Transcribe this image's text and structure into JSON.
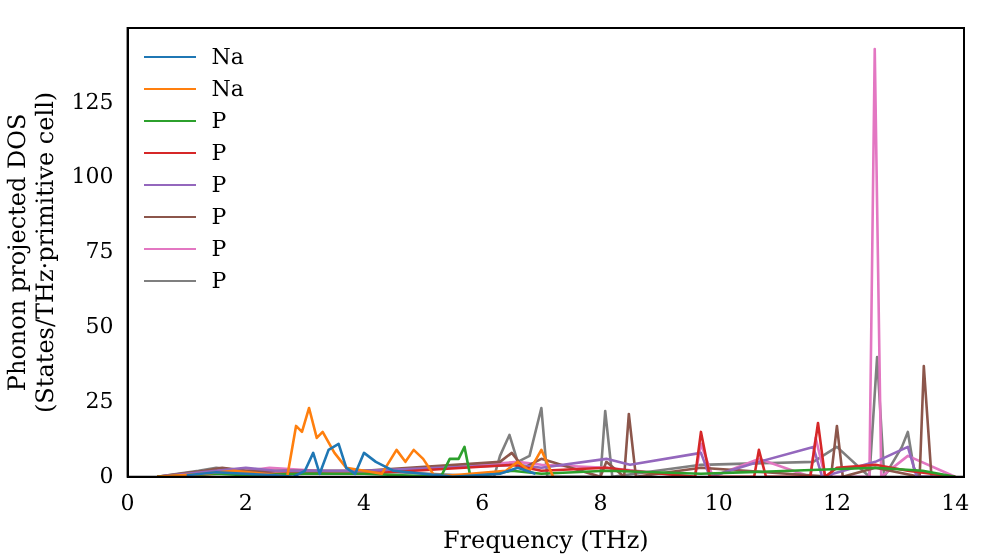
{
  "chart_data": {
    "type": "line",
    "xlabel": "Frequency (THz)",
    "ylabel": "Phonon projected DOS\n(States/THz·primitive cell)",
    "xlim": [
      0,
      14.15
    ],
    "ylim": [
      0,
      150
    ],
    "xticks": [
      0,
      2,
      4,
      6,
      8,
      10,
      12,
      14
    ],
    "yticks": [
      0,
      25,
      50,
      75,
      100,
      125
    ],
    "grid": false,
    "legend": "top left",
    "marker": "none",
    "line_style": "solid",
    "series": [
      {
        "name": "Na",
        "color": "#1f77b4",
        "x": [
          1.0,
          1.5,
          2.0,
          2.5,
          2.8,
          3.0,
          3.14,
          3.25,
          3.4,
          3.57,
          3.7,
          3.85,
          4.0,
          4.2,
          4.5,
          5.0,
          5.5,
          6.3,
          6.6,
          6.9
        ],
        "values": [
          0.5,
          1.5,
          1,
          0.5,
          0,
          2,
          8,
          1,
          9,
          11,
          3,
          1,
          8,
          5,
          2,
          1,
          0,
          1,
          3,
          1
        ]
      },
      {
        "name": "Na",
        "color": "#ff7f0e",
        "x": [
          0.5,
          1.3,
          1.8,
          2.3,
          2.7,
          2.85,
          2.95,
          3.07,
          3.2,
          3.3,
          3.5,
          3.7,
          4.0,
          4.3,
          4.55,
          4.7,
          4.84,
          5.0,
          5.2,
          6.4,
          6.6,
          6.8,
          7.0,
          7.2
        ],
        "values": [
          0,
          1,
          2,
          1,
          0,
          17,
          15,
          23,
          13,
          15,
          8,
          3,
          2,
          1,
          9,
          5,
          9,
          6,
          0,
          2,
          5,
          2,
          9,
          0
        ]
      },
      {
        "name": "P",
        "color": "#2ca02c",
        "x": [
          0.5,
          1.5,
          2.0,
          3.0,
          4.0,
          5.3,
          5.45,
          5.6,
          5.7,
          5.8,
          6.5,
          7.0,
          8.1,
          9.7,
          12.65,
          13.45,
          14.0
        ],
        "values": [
          0,
          1,
          0.5,
          1,
          1,
          0,
          6,
          6,
          10,
          0,
          2,
          1,
          2,
          1,
          3,
          2,
          0
        ]
      },
      {
        "name": "P",
        "color": "#d62728",
        "x": [
          0.5,
          1.5,
          2.5,
          4.0,
          6.5,
          7.0,
          8.1,
          8.5,
          9.6,
          9.7,
          9.85,
          10.6,
          10.68,
          10.8,
          11.55,
          11.68,
          11.8,
          12.0,
          12.65,
          13.2,
          14.0
        ],
        "values": [
          0,
          1,
          1,
          1,
          4,
          2,
          3,
          2,
          0,
          15,
          0,
          0,
          9,
          0,
          0,
          18,
          0,
          3,
          4,
          2,
          0
        ]
      },
      {
        "name": "P",
        "color": "#9467bd",
        "x": [
          0.5,
          1.5,
          2.0,
          2.5,
          4.0,
          6.6,
          7.0,
          8.1,
          8.5,
          9.7,
          9.85,
          10.68,
          11.6,
          11.75,
          12.65,
          13.2,
          13.35,
          14.0
        ],
        "values": [
          0,
          2,
          3,
          2,
          2,
          4,
          3,
          6,
          4,
          8,
          0,
          5,
          10,
          0,
          5,
          10,
          0,
          0
        ]
      },
      {
        "name": "P",
        "color": "#8c564b",
        "x": [
          0.5,
          1.3,
          1.6,
          2.0,
          4.0,
          6.3,
          6.5,
          6.7,
          7.0,
          8.0,
          8.1,
          8.4,
          8.48,
          8.6,
          9.7,
          11.9,
          12.0,
          12.1,
          12.65,
          13.4,
          13.47,
          13.6,
          14.0
        ],
        "values": [
          0,
          2,
          3,
          2,
          2,
          5,
          8,
          3,
          6,
          0,
          5,
          0,
          21,
          0,
          3,
          0,
          17,
          0,
          3,
          0,
          37,
          0,
          0
        ]
      },
      {
        "name": "P",
        "color": "#e377c2",
        "x": [
          0.5,
          1.5,
          2.0,
          2.4,
          4.0,
          6.6,
          7.0,
          8.1,
          9.6,
          9.7,
          9.9,
          10.68,
          11.55,
          11.64,
          11.8,
          12.55,
          12.64,
          12.75,
          13.2,
          14.0
        ],
        "values": [
          0,
          2,
          2,
          3,
          1,
          5,
          4,
          3,
          0,
          11,
          0,
          6,
          0,
          13,
          0,
          0,
          143,
          0,
          7,
          0
        ]
      },
      {
        "name": "P",
        "color": "#7f7f7f",
        "x": [
          0.5,
          1.2,
          1.5,
          2.0,
          2.5,
          4.0,
          6.2,
          6.3,
          6.46,
          6.6,
          6.8,
          7.0,
          7.1,
          8.0,
          8.08,
          8.2,
          9.7,
          11.6,
          12.0,
          12.55,
          12.68,
          12.8,
          13.1,
          13.2,
          13.3,
          13.4,
          14.0
        ],
        "values": [
          0,
          2,
          3,
          2,
          1,
          2,
          0,
          7,
          14,
          5,
          7,
          23,
          0,
          0,
          22,
          0,
          4,
          5,
          10,
          0,
          40,
          0,
          10,
          15,
          3,
          0,
          0
        ]
      }
    ]
  }
}
